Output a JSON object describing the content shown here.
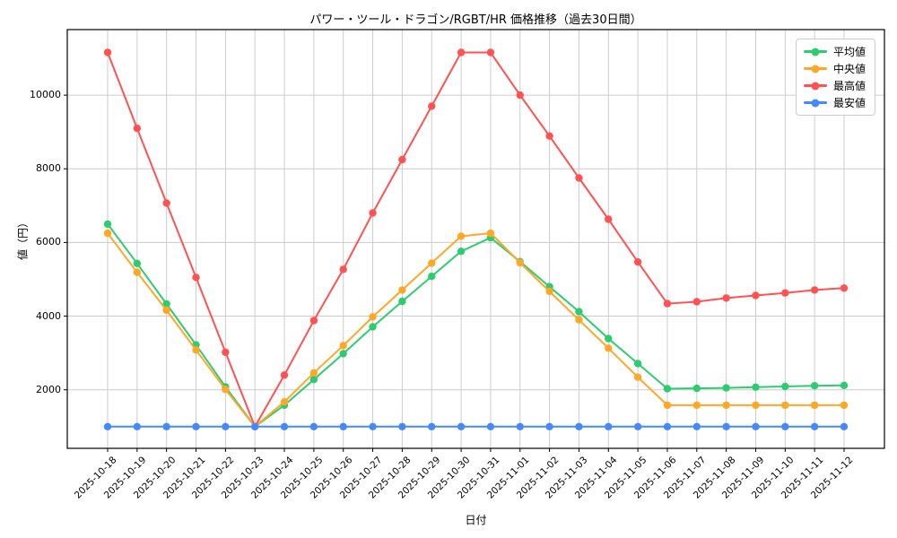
{
  "chart_data": {
    "type": "line",
    "title": "パワー・ツール・ドラゴン/RGBT/HR 価格推移（過去30日間）",
    "xlabel": "日付",
    "ylabel": "値（円）",
    "grid": true,
    "legend_position": "upper right",
    "ylim": [
      410,
      11780
    ],
    "y_ticks": [
      2000,
      4000,
      6000,
      8000,
      10000
    ],
    "x": [
      "2025-10-18",
      "2025-10-19",
      "2025-10-20",
      "2025-10-21",
      "2025-10-22",
      "2025-10-23",
      "2025-10-24",
      "2025-10-25",
      "2025-10-26",
      "2025-10-27",
      "2025-10-28",
      "2025-10-29",
      "2025-10-30",
      "2025-10-31",
      "2025-11-01",
      "2025-11-02",
      "2025-11-03",
      "2025-11-04",
      "2025-11-05",
      "2025-11-06",
      "2025-11-07",
      "2025-11-08",
      "2025-11-09",
      "2025-11-10",
      "2025-11-11",
      "2025-11-12"
    ],
    "series": [
      {
        "name": "平均値",
        "color": "#2ecc71",
        "values": [
          6500,
          5430,
          4330,
          3220,
          2080,
          1000,
          1580,
          2280,
          2980,
          3710,
          4400,
          5080,
          5760,
          6130,
          5480,
          4800,
          4120,
          3390,
          2710,
          2030,
          2040,
          2050,
          2070,
          2090,
          2110,
          2120
        ]
      },
      {
        "name": "中央値",
        "color": "#ffa726",
        "values": [
          6250,
          5190,
          4160,
          3080,
          2010,
          1000,
          1670,
          2460,
          3200,
          3980,
          4710,
          5440,
          6170,
          6250,
          5450,
          4670,
          3900,
          3130,
          2340,
          1580,
          1580,
          1580,
          1580,
          1580,
          1580,
          1580
        ]
      },
      {
        "name": "最高値",
        "color": "#ff5252",
        "values": [
          11160,
          9100,
          7070,
          5050,
          3020,
          1000,
          2400,
          3880,
          5270,
          6800,
          8250,
          9700,
          11160,
          11160,
          10000,
          8890,
          7750,
          6630,
          5470,
          4340,
          4390,
          4490,
          4560,
          4630,
          4710,
          4760
        ]
      },
      {
        "name": "最安値",
        "color": "#448aff",
        "values": [
          1000,
          1000,
          1000,
          1000,
          1000,
          1000,
          1000,
          1000,
          1000,
          1000,
          1000,
          1000,
          1000,
          1000,
          1000,
          1000,
          1000,
          1000,
          1000,
          1000,
          1000,
          1000,
          1000,
          1000,
          1000,
          1000
        ]
      }
    ],
    "colors": {
      "grid": "#cccccc",
      "axis": "#000000",
      "background": "#ffffff"
    }
  }
}
